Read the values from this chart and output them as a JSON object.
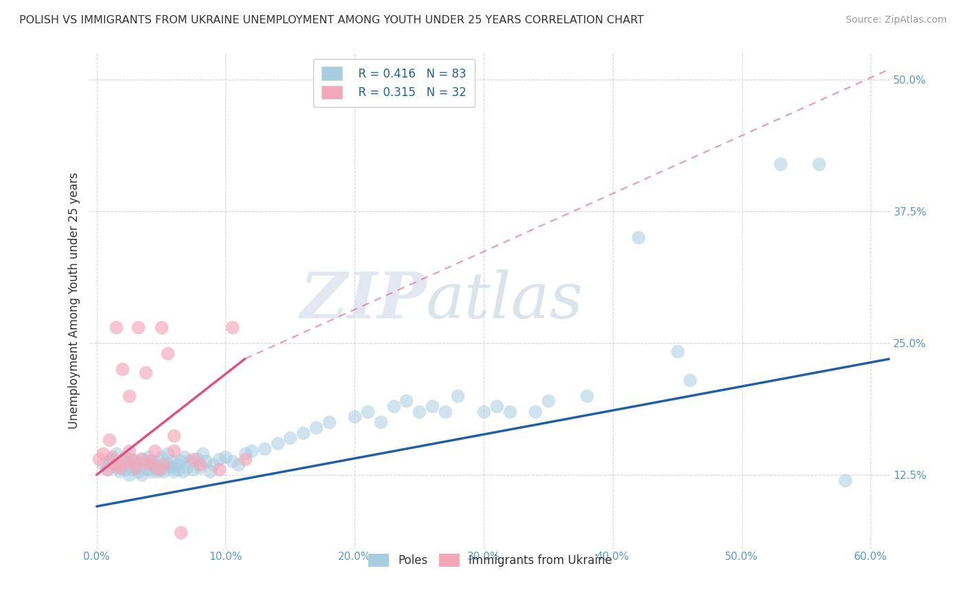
{
  "title": "POLISH VS IMMIGRANTS FROM UKRAINE UNEMPLOYMENT AMONG YOUTH UNDER 25 YEARS CORRELATION CHART",
  "source": "Source: ZipAtlas.com",
  "ylabel": "Unemployment Among Youth under 25 years",
  "xlim": [
    -0.005,
    0.615
  ],
  "ylim": [
    0.055,
    0.525
  ],
  "xticks": [
    0.0,
    0.1,
    0.2,
    0.3,
    0.4,
    0.5,
    0.6
  ],
  "xticklabels": [
    "0.0%",
    "10.0%",
    "20.0%",
    "30.0%",
    "40.0%",
    "50.0%",
    "60.0%"
  ],
  "yticks": [
    0.125,
    0.25,
    0.375,
    0.5
  ],
  "yticklabels": [
    "12.5%",
    "25.0%",
    "37.5%",
    "50.0%"
  ],
  "legend_r1": "R = 0.416",
  "legend_n1": "N = 83",
  "legend_r2": "R = 0.315",
  "legend_n2": "N = 32",
  "color_poles": "#a8cce0",
  "color_ukraine": "#f4a7b9",
  "color_trendline_poles": "#1f5fa6",
  "color_trendline_ukraine": "#e05080",
  "watermark_zip": "ZIP",
  "watermark_atlas": "atlas",
  "poles_x": [
    0.005,
    0.008,
    0.01,
    0.012,
    0.015,
    0.015,
    0.018,
    0.02,
    0.022,
    0.022,
    0.025,
    0.025,
    0.027,
    0.028,
    0.03,
    0.03,
    0.032,
    0.033,
    0.035,
    0.035,
    0.038,
    0.04,
    0.04,
    0.042,
    0.043,
    0.045,
    0.047,
    0.048,
    0.05,
    0.05,
    0.052,
    0.055,
    0.055,
    0.057,
    0.058,
    0.06,
    0.062,
    0.063,
    0.065,
    0.067,
    0.068,
    0.07,
    0.072,
    0.075,
    0.078,
    0.08,
    0.082,
    0.085,
    0.088,
    0.09,
    0.095,
    0.1,
    0.105,
    0.11,
    0.115,
    0.12,
    0.13,
    0.14,
    0.15,
    0.16,
    0.17,
    0.18,
    0.2,
    0.21,
    0.22,
    0.23,
    0.24,
    0.25,
    0.26,
    0.27,
    0.28,
    0.3,
    0.31,
    0.32,
    0.34,
    0.35,
    0.38,
    0.42,
    0.45,
    0.46,
    0.53,
    0.56,
    0.58
  ],
  "poles_y": [
    0.135,
    0.13,
    0.138,
    0.14,
    0.132,
    0.145,
    0.128,
    0.138,
    0.13,
    0.142,
    0.135,
    0.125,
    0.14,
    0.13,
    0.133,
    0.138,
    0.128,
    0.132,
    0.14,
    0.125,
    0.138,
    0.13,
    0.142,
    0.128,
    0.135,
    0.132,
    0.128,
    0.138,
    0.13,
    0.142,
    0.128,
    0.135,
    0.145,
    0.132,
    0.138,
    0.128,
    0.135,
    0.13,
    0.138,
    0.128,
    0.142,
    0.132,
    0.138,
    0.13,
    0.14,
    0.132,
    0.145,
    0.138,
    0.128,
    0.135,
    0.14,
    0.142,
    0.138,
    0.135,
    0.145,
    0.148,
    0.15,
    0.155,
    0.16,
    0.165,
    0.17,
    0.175,
    0.18,
    0.185,
    0.175,
    0.19,
    0.195,
    0.185,
    0.19,
    0.185,
    0.2,
    0.185,
    0.19,
    0.185,
    0.185,
    0.195,
    0.2,
    0.35,
    0.242,
    0.215,
    0.42,
    0.42,
    0.12
  ],
  "ukraine_x": [
    0.002,
    0.005,
    0.008,
    0.01,
    0.012,
    0.015,
    0.015,
    0.018,
    0.02,
    0.022,
    0.025,
    0.025,
    0.028,
    0.03,
    0.032,
    0.035,
    0.038,
    0.04,
    0.042,
    0.045,
    0.048,
    0.052,
    0.055,
    0.06,
    0.065,
    0.075,
    0.08,
    0.095,
    0.105,
    0.115,
    0.05,
    0.06
  ],
  "ukraine_y": [
    0.14,
    0.145,
    0.13,
    0.158,
    0.142,
    0.135,
    0.265,
    0.132,
    0.225,
    0.138,
    0.148,
    0.2,
    0.138,
    0.132,
    0.265,
    0.14,
    0.222,
    0.135,
    0.138,
    0.148,
    0.13,
    0.135,
    0.24,
    0.148,
    0.07,
    0.14,
    0.135,
    0.13,
    0.265,
    0.14,
    0.265,
    0.162
  ],
  "trendline_poles_x0": 0.0,
  "trendline_poles_x1": 0.615,
  "trendline_poles_y0": 0.095,
  "trendline_poles_y1": 0.235,
  "trendline_ukraine_solid_x0": 0.0,
  "trendline_ukraine_solid_x1": 0.115,
  "trendline_ukraine_solid_y0": 0.125,
  "trendline_ukraine_solid_y1": 0.235,
  "trendline_ukraine_dash_x0": 0.115,
  "trendline_ukraine_dash_x1": 0.615,
  "trendline_ukraine_dash_y0": 0.235,
  "trendline_ukraine_dash_y1": 0.51
}
